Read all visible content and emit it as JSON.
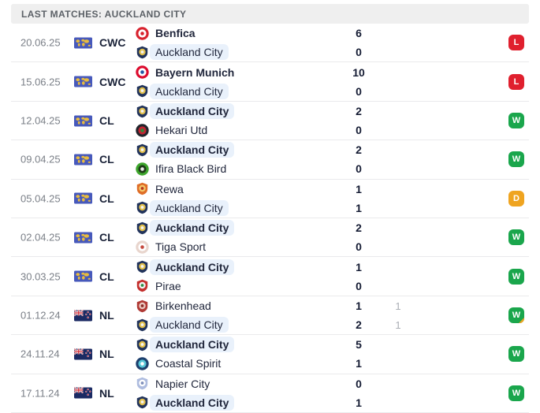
{
  "header": {
    "title": "LAST MATCHES: AUCKLAND CITY"
  },
  "colors": {
    "win": "#1aa64c",
    "loss": "#e0202e",
    "draw": "#efa420",
    "penalty_fold": "#efa420",
    "highlight_pill": "#e9f1fb",
    "header_bg": "#efefef",
    "world_flag_bg": "#4759bb",
    "world_flag_map": "#e9bc3e",
    "nz_flag_bg": "#1b2a63"
  },
  "matches": [
    {
      "date": "20.06.25",
      "comp": "CWC",
      "flag": "world",
      "result": "L",
      "penalty": false,
      "home": {
        "name": "Benfica",
        "score": "6",
        "bold": true,
        "highlight": false,
        "logo": {
          "shape": "circle",
          "colors": [
            "#d8222e",
            "#ffffff",
            "#d8222e"
          ]
        }
      },
      "away": {
        "name": "Auckland City",
        "score": "0",
        "bold": false,
        "highlight": true,
        "logo": {
          "shape": "shield",
          "colors": [
            "#22345c",
            "#e3c04c",
            "#f5f5f5"
          ]
        }
      }
    },
    {
      "date": "15.06.25",
      "comp": "CWC",
      "flag": "world",
      "result": "L",
      "penalty": false,
      "home": {
        "name": "Bayern Munich",
        "score": "10",
        "bold": true,
        "highlight": false,
        "logo": {
          "shape": "circle",
          "colors": [
            "#dc0a2d",
            "#ffffff",
            "#2456a4"
          ]
        }
      },
      "away": {
        "name": "Auckland City",
        "score": "0",
        "bold": false,
        "highlight": true,
        "logo": {
          "shape": "shield",
          "colors": [
            "#22345c",
            "#e3c04c",
            "#f5f5f5"
          ]
        }
      }
    },
    {
      "date": "12.04.25",
      "comp": "CL",
      "flag": "world",
      "result": "W",
      "penalty": false,
      "home": {
        "name": "Auckland City",
        "score": "2",
        "bold": true,
        "highlight": true,
        "logo": {
          "shape": "shield",
          "colors": [
            "#22345c",
            "#e3c04c",
            "#f5f5f5"
          ]
        }
      },
      "away": {
        "name": "Hekari Utd",
        "score": "0",
        "bold": false,
        "highlight": false,
        "logo": {
          "shape": "circle",
          "colors": [
            "#20242b",
            "#c22432",
            "#2e8b3a"
          ]
        }
      }
    },
    {
      "date": "09.04.25",
      "comp": "CL",
      "flag": "world",
      "result": "W",
      "penalty": false,
      "home": {
        "name": "Auckland City",
        "score": "2",
        "bold": true,
        "highlight": true,
        "logo": {
          "shape": "shield",
          "colors": [
            "#22345c",
            "#e3c04c",
            "#f5f5f5"
          ]
        }
      },
      "away": {
        "name": "Ifira Black Bird",
        "score": "0",
        "bold": false,
        "highlight": false,
        "logo": {
          "shape": "circle",
          "colors": [
            "#3da52c",
            "#1d3a17",
            "#e8e8e8"
          ]
        }
      }
    },
    {
      "date": "05.04.25",
      "comp": "CL",
      "flag": "world",
      "result": "D",
      "penalty": false,
      "home": {
        "name": "Rewa",
        "score": "1",
        "bold": false,
        "highlight": false,
        "logo": {
          "shape": "shield",
          "colors": [
            "#df6e28",
            "#f3c96b",
            "#b5341e"
          ]
        }
      },
      "away": {
        "name": "Auckland City",
        "score": "1",
        "bold": false,
        "highlight": true,
        "logo": {
          "shape": "shield",
          "colors": [
            "#22345c",
            "#e3c04c",
            "#f5f5f5"
          ]
        }
      }
    },
    {
      "date": "02.04.25",
      "comp": "CL",
      "flag": "world",
      "result": "W",
      "penalty": false,
      "home": {
        "name": "Auckland City",
        "score": "2",
        "bold": true,
        "highlight": true,
        "logo": {
          "shape": "shield",
          "colors": [
            "#22345c",
            "#e3c04c",
            "#f5f5f5"
          ]
        }
      },
      "away": {
        "name": "Tiga Sport",
        "score": "0",
        "bold": false,
        "highlight": false,
        "logo": {
          "shape": "circle",
          "colors": [
            "#e8d5cd",
            "#ffffff",
            "#c4473c"
          ]
        }
      }
    },
    {
      "date": "30.03.25",
      "comp": "CL",
      "flag": "world",
      "result": "W",
      "penalty": false,
      "home": {
        "name": "Auckland City",
        "score": "1",
        "bold": true,
        "highlight": true,
        "logo": {
          "shape": "shield",
          "colors": [
            "#22345c",
            "#e3c04c",
            "#f5f5f5"
          ]
        }
      },
      "away": {
        "name": "Pirae",
        "score": "0",
        "bold": false,
        "highlight": false,
        "logo": {
          "shape": "shield",
          "colors": [
            "#c4302e",
            "#f2f2f2",
            "#2f8f45"
          ]
        }
      }
    },
    {
      "date": "01.12.24",
      "comp": "NL",
      "flag": "nz",
      "result": "W",
      "penalty": true,
      "home": {
        "name": "Birkenhead",
        "score": "1",
        "score_ft": "1",
        "bold": false,
        "highlight": false,
        "logo": {
          "shape": "shield",
          "colors": [
            "#b03a35",
            "#e9c9c0",
            "#8c2b27"
          ]
        }
      },
      "away": {
        "name": "Auckland City",
        "score": "2",
        "score_ft": "1",
        "bold": false,
        "highlight": true,
        "logo": {
          "shape": "shield",
          "colors": [
            "#22345c",
            "#e3c04c",
            "#f5f5f5"
          ]
        }
      }
    },
    {
      "date": "24.11.24",
      "comp": "NL",
      "flag": "nz",
      "result": "W",
      "penalty": false,
      "home": {
        "name": "Auckland City",
        "score": "5",
        "bold": true,
        "highlight": true,
        "logo": {
          "shape": "shield",
          "colors": [
            "#22345c",
            "#e3c04c",
            "#f5f5f5"
          ]
        }
      },
      "away": {
        "name": "Coastal Spirit",
        "score": "1",
        "bold": false,
        "highlight": false,
        "logo": {
          "shape": "circle",
          "colors": [
            "#1d3f6d",
            "#57c7d8",
            "#ffffff"
          ]
        }
      }
    },
    {
      "date": "17.11.24",
      "comp": "NL",
      "flag": "nz",
      "result": "W",
      "penalty": false,
      "home": {
        "name": "Napier City",
        "score": "0",
        "bold": false,
        "highlight": false,
        "logo": {
          "shape": "shield",
          "colors": [
            "#aebcdf",
            "#ffffff",
            "#7f90bb"
          ]
        }
      },
      "away": {
        "name": "Auckland City",
        "score": "1",
        "bold": true,
        "highlight": true,
        "logo": {
          "shape": "shield",
          "colors": [
            "#22345c",
            "#e3c04c",
            "#f5f5f5"
          ]
        }
      }
    }
  ]
}
